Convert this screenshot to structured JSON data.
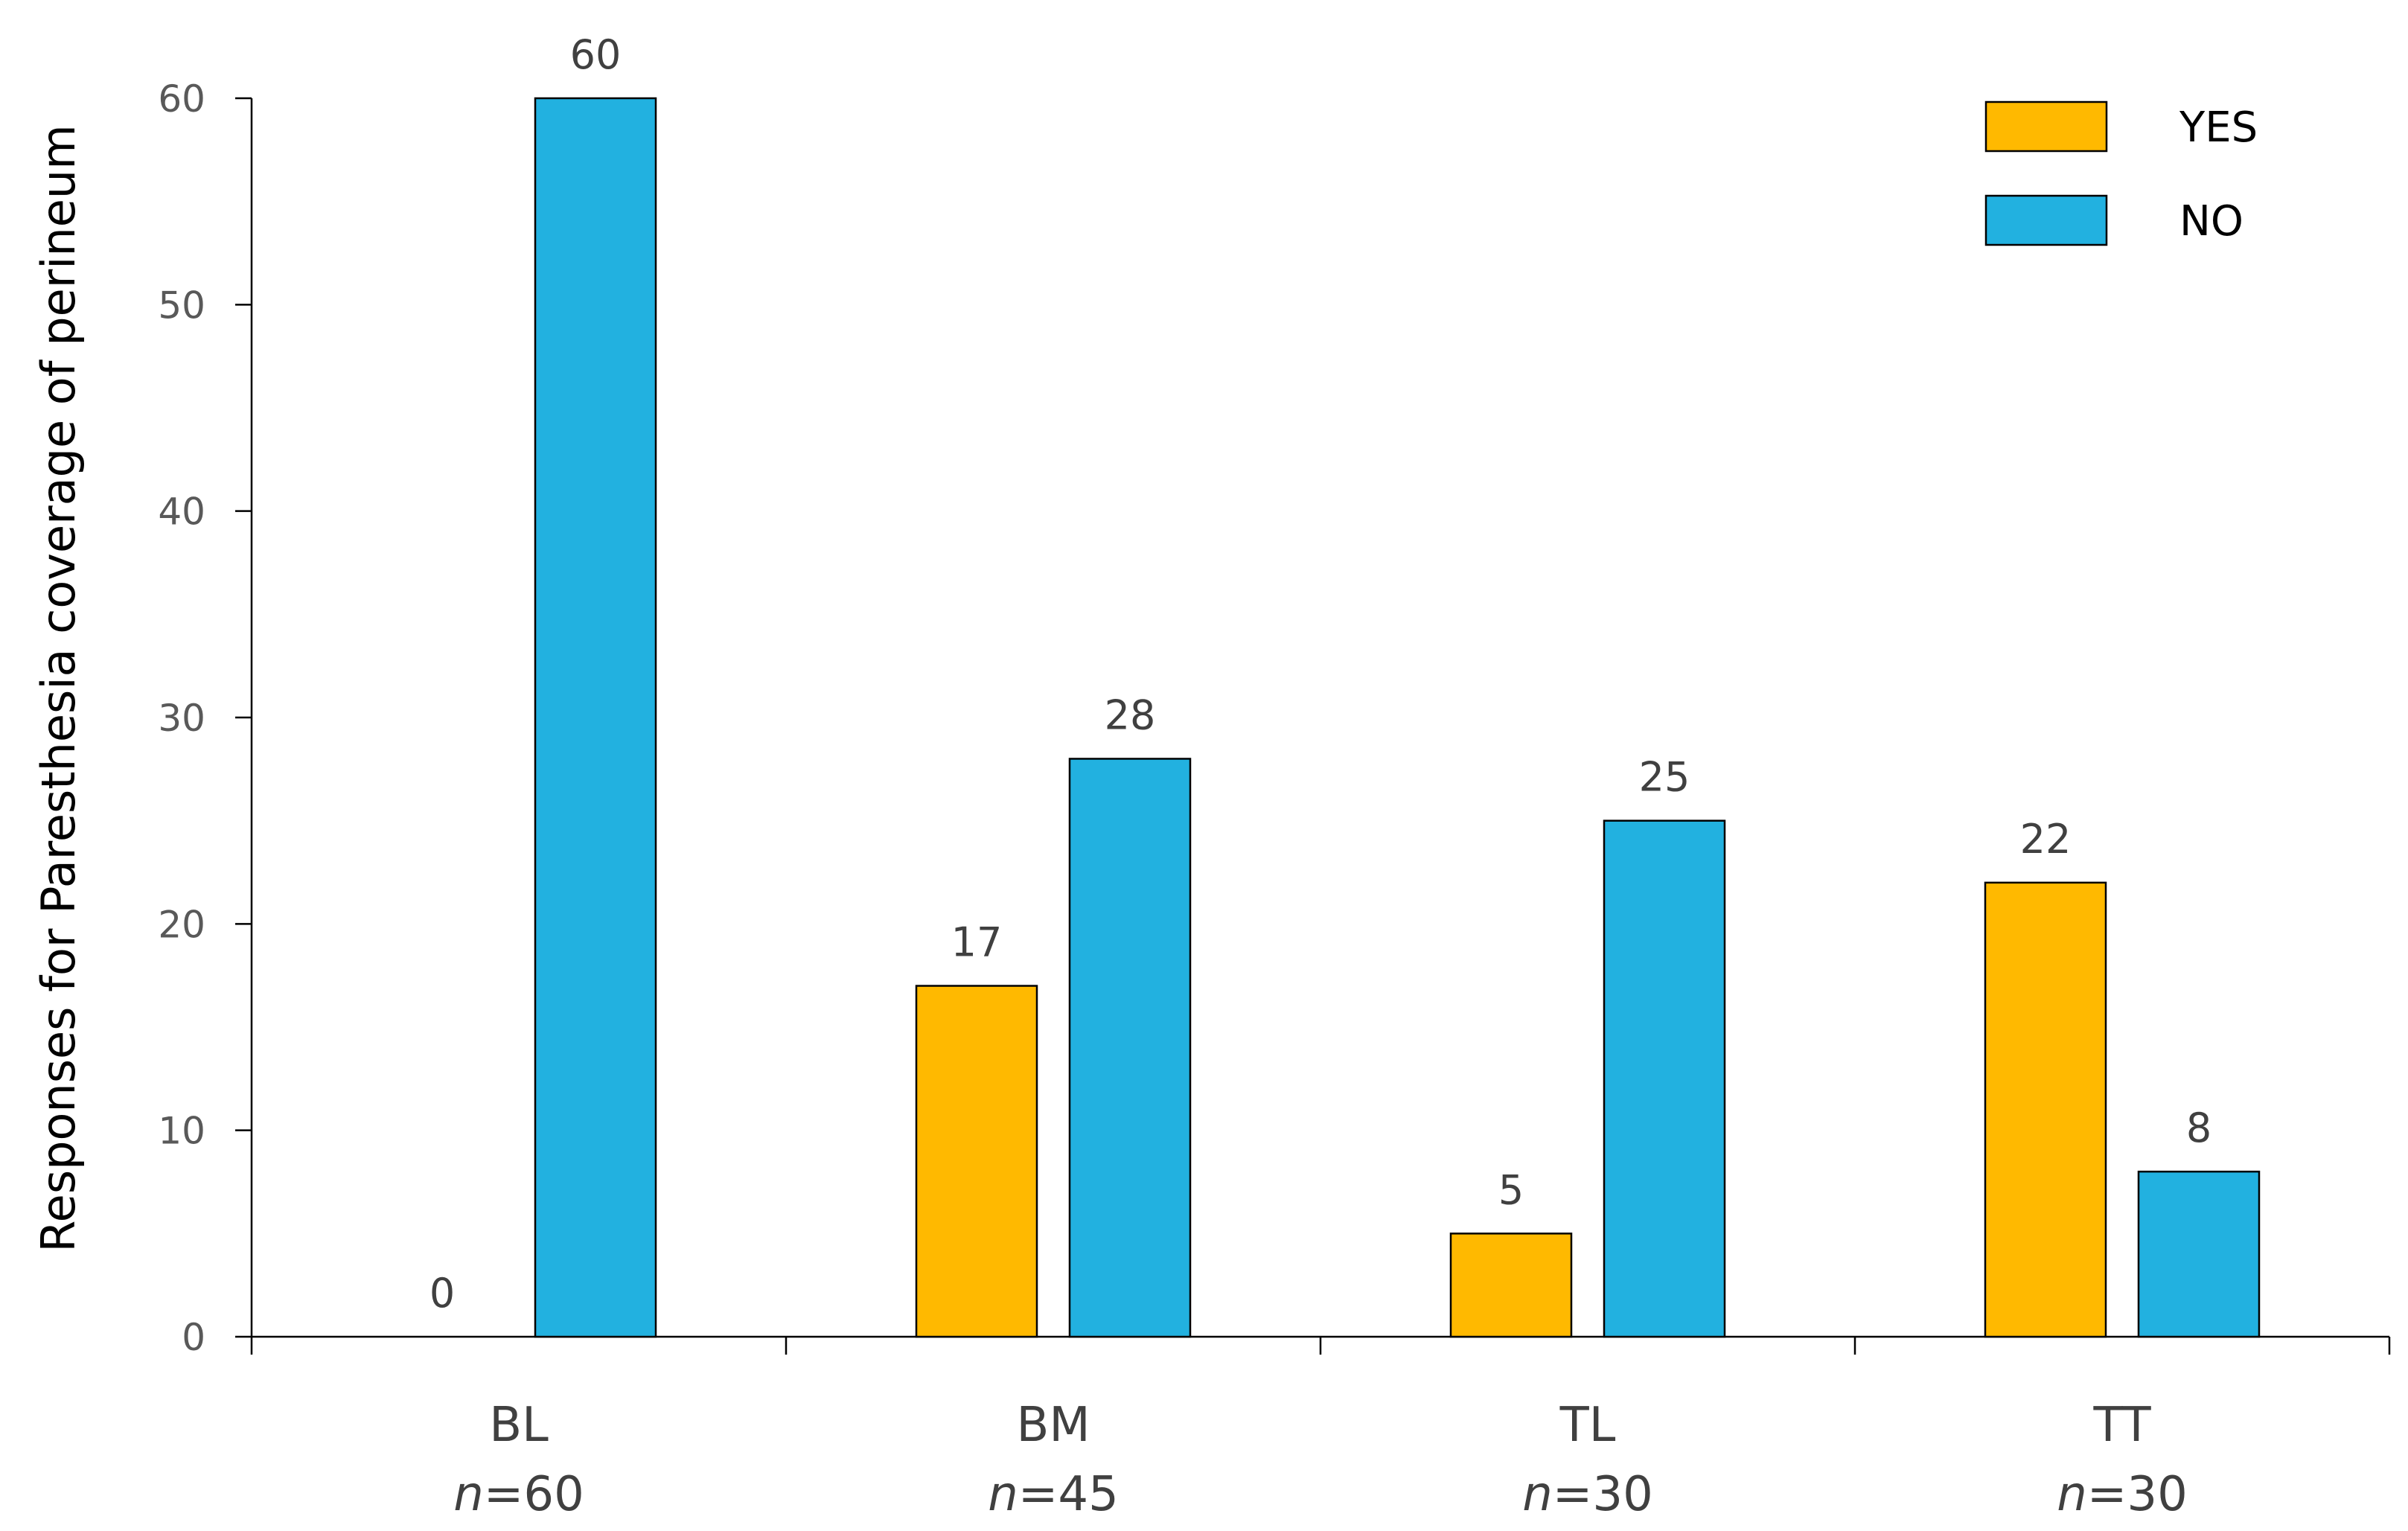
{
  "chart_data": {
    "type": "bar",
    "categories": [
      "BL",
      "BM",
      "TL",
      "TT"
    ],
    "category_sublabels": [
      {
        "prefix": "n",
        "value": "=60"
      },
      {
        "prefix": "n",
        "value": "=45"
      },
      {
        "prefix": "n",
        "value": "=30"
      },
      {
        "prefix": "n",
        "value": "=30"
      }
    ],
    "series": [
      {
        "name": "YES",
        "values": [
          0,
          17,
          5,
          22
        ],
        "color": "#FFB900"
      },
      {
        "name": "NO",
        "values": [
          60,
          28,
          25,
          8
        ],
        "color": "#22B1E0"
      }
    ],
    "ylabel": "Responses  for Paresthesia coverage of perineum",
    "xlabel": "",
    "ylim": [
      0,
      60
    ],
    "yticks": [
      0,
      10,
      20,
      30,
      40,
      50,
      60
    ],
    "grid": false,
    "legend_position": "top-right",
    "data_labels": true
  }
}
